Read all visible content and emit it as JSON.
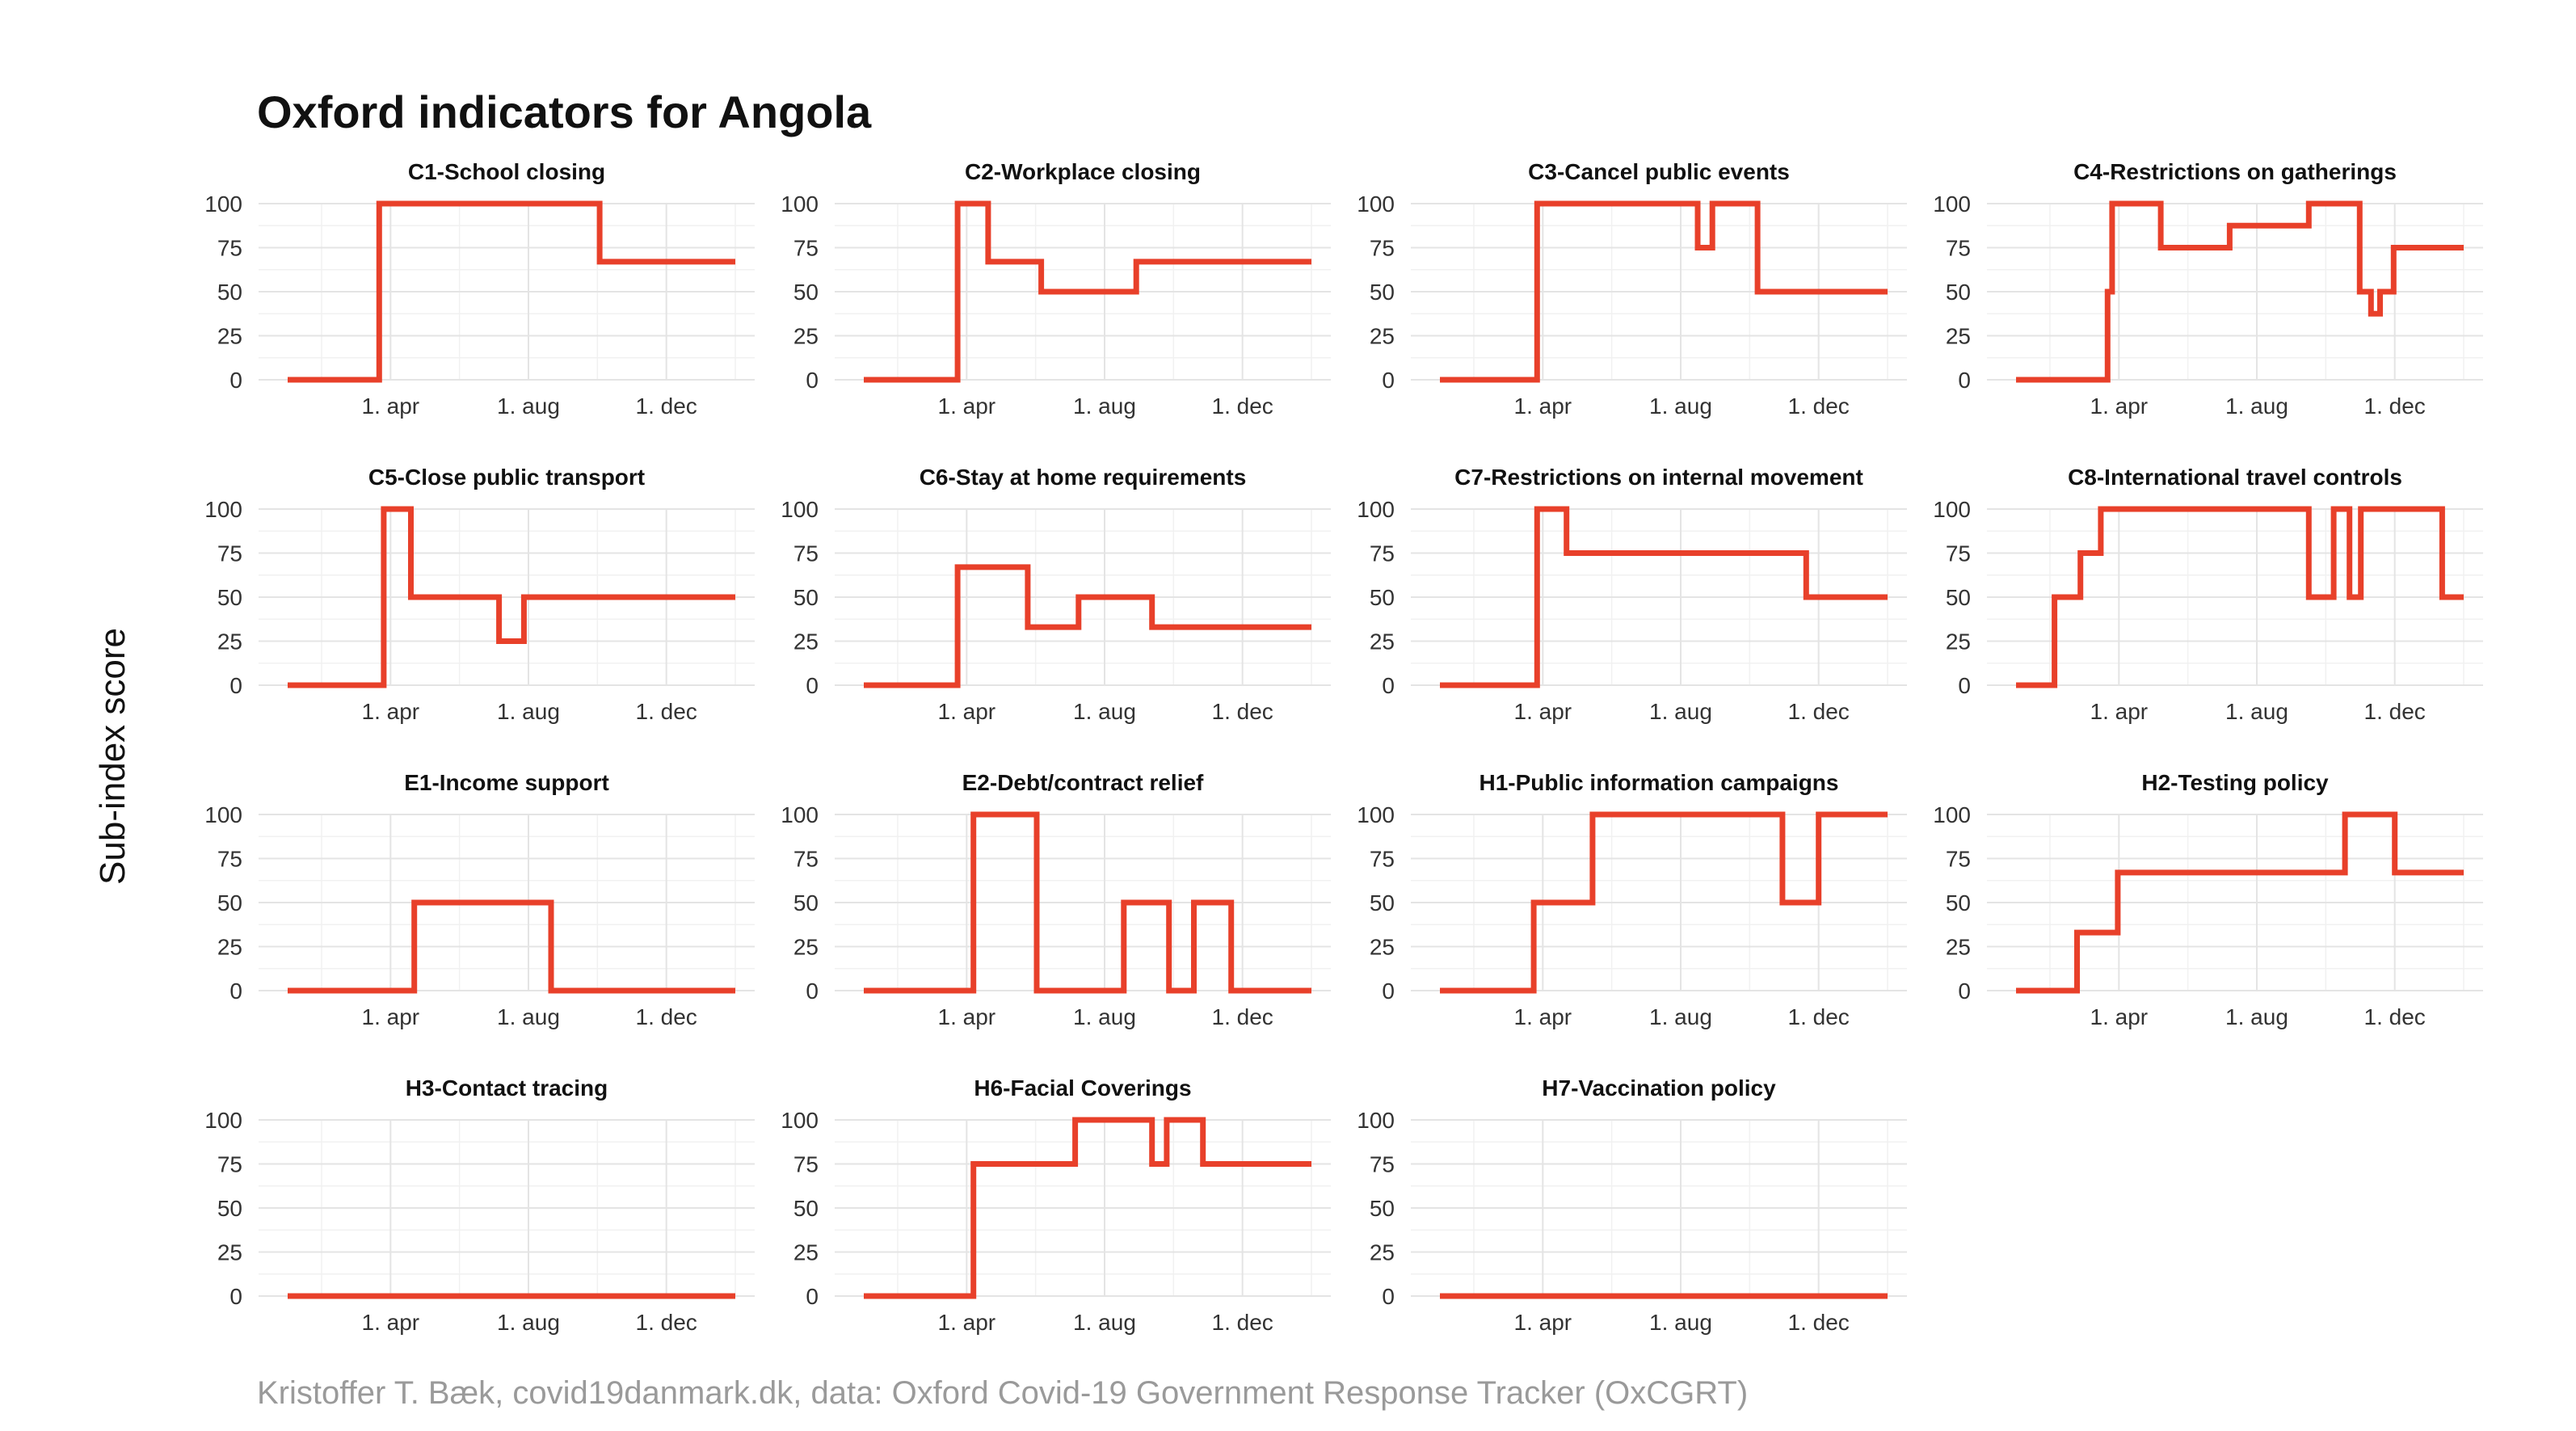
{
  "title": "Oxford indicators for Angola",
  "y_axis_label": "Sub-index score",
  "caption": "Kristoffer T. Bæk, covid19danmark.dk, data: Oxford Covid-19 Government Response Tracker (OxCGRT)",
  "colors": {
    "line": "#e8402a",
    "grid": "#e4e4e4"
  },
  "chart_data": {
    "type": "line",
    "layout": "facet 4 columns",
    "ylim": [
      0,
      100
    ],
    "y_ticks": [
      0,
      25,
      50,
      75,
      100
    ],
    "x_unit": "day of 2020 (day 0 = 1 jan)",
    "xlim": [
      0,
      396
    ],
    "x_ticks": [
      {
        "label": "1. apr",
        "day": 91
      },
      {
        "label": "1. aug",
        "day": 213
      },
      {
        "label": "1. dec",
        "day": 335
      }
    ],
    "panels": [
      {
        "title": "C1-School closing",
        "x": [
          0,
          81,
          81,
          276,
          276,
          396
        ],
        "y": [
          0,
          0,
          100,
          100,
          67,
          67
        ]
      },
      {
        "title": "C2-Workplace closing",
        "x": [
          0,
          83,
          83,
          110,
          110,
          157,
          157,
          241,
          241,
          396
        ],
        "y": [
          0,
          0,
          100,
          100,
          67,
          67,
          50,
          50,
          67,
          67
        ]
      },
      {
        "title": "C3-Cancel public events",
        "x": [
          0,
          86,
          86,
          228,
          228,
          241,
          241,
          281,
          281,
          396
        ],
        "y": [
          0,
          0,
          100,
          100,
          75,
          75,
          100,
          100,
          50,
          50
        ]
      },
      {
        "title": "C4-Restrictions on gatherings",
        "x": [
          0,
          81,
          81,
          85,
          85,
          128,
          128,
          189,
          189,
          259,
          259,
          304,
          304,
          314,
          314,
          322,
          322,
          334,
          334,
          396
        ],
        "y": [
          0,
          0,
          50,
          50,
          100,
          100,
          75,
          75,
          87.5,
          87.5,
          100,
          100,
          50,
          50,
          37.5,
          37.5,
          50,
          50,
          75,
          75
        ]
      },
      {
        "title": "C5-Close public transport",
        "x": [
          0,
          85,
          85,
          109,
          109,
          187,
          187,
          209,
          209,
          396
        ],
        "y": [
          0,
          0,
          100,
          100,
          50,
          50,
          25,
          25,
          50,
          50
        ]
      },
      {
        "title": "C6-Stay at home requirements",
        "x": [
          0,
          83,
          83,
          145,
          145,
          190,
          190,
          255,
          255,
          396
        ],
        "y": [
          0,
          0,
          67,
          67,
          33,
          33,
          50,
          50,
          33,
          33
        ]
      },
      {
        "title": "C7-Restrictions on internal movement",
        "x": [
          0,
          86,
          86,
          112,
          112,
          324,
          324,
          396
        ],
        "y": [
          0,
          0,
          100,
          100,
          75,
          75,
          50,
          50
        ]
      },
      {
        "title": "C8-International travel controls",
        "x": [
          0,
          34,
          34,
          57,
          57,
          75,
          75,
          259,
          259,
          281,
          281,
          295,
          295,
          305,
          305,
          377,
          377,
          396
        ],
        "y": [
          0,
          0,
          50,
          50,
          75,
          75,
          100,
          100,
          50,
          50,
          100,
          100,
          50,
          50,
          100,
          100,
          50,
          50
        ]
      },
      {
        "title": "E1-Income support",
        "x": [
          0,
          112,
          112,
          233,
          233,
          396
        ],
        "y": [
          0,
          0,
          50,
          50,
          0,
          0
        ]
      },
      {
        "title": "E2-Debt/contract relief",
        "x": [
          0,
          97,
          97,
          153,
          153,
          230,
          230,
          270,
          270,
          292,
          292,
          325,
          325,
          396
        ],
        "y": [
          0,
          0,
          100,
          100,
          0,
          0,
          50,
          50,
          0,
          0,
          50,
          50,
          0,
          0
        ]
      },
      {
        "title": "H1-Public information campaigns",
        "x": [
          0,
          83,
          83,
          135,
          135,
          303,
          303,
          335,
          335,
          396
        ],
        "y": [
          0,
          0,
          50,
          50,
          100,
          100,
          50,
          50,
          100,
          100
        ]
      },
      {
        "title": "H2-Testing policy",
        "x": [
          0,
          54,
          54,
          90,
          90,
          291,
          291,
          335,
          335,
          396
        ],
        "y": [
          0,
          0,
          33,
          33,
          67,
          67,
          100,
          100,
          67,
          67
        ]
      },
      {
        "title": "H3-Contact tracing",
        "x": [
          0,
          396
        ],
        "y": [
          0,
          0
        ]
      },
      {
        "title": "H6-Facial Coverings",
        "x": [
          0,
          97,
          97,
          187,
          187,
          255,
          255,
          268,
          268,
          300,
          300,
          396
        ],
        "y": [
          0,
          0,
          75,
          75,
          100,
          100,
          75,
          75,
          100,
          100,
          75,
          75
        ]
      },
      {
        "title": "H7-Vaccination policy",
        "x": [
          0,
          396
        ],
        "y": [
          0,
          0
        ]
      }
    ]
  }
}
